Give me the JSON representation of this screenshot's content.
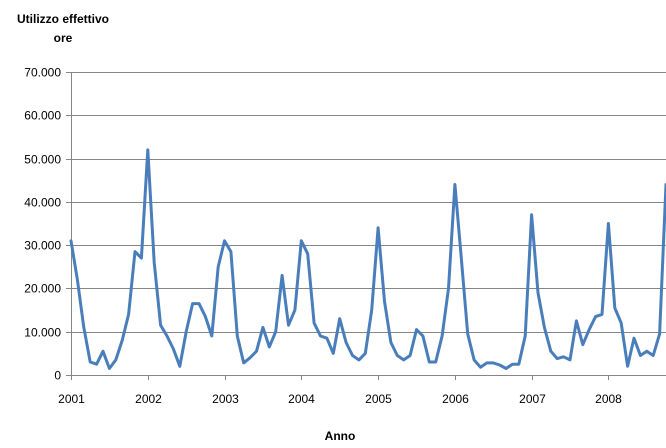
{
  "chart_data": {
    "type": "line",
    "ylabel": "Utilizzo effettivo ore",
    "xlabel": "Anno",
    "ylim": [
      0,
      70000
    ],
    "yticks": [
      0,
      10000,
      20000,
      30000,
      40000,
      50000,
      60000,
      70000
    ],
    "ytick_labels": [
      "0",
      "10.000",
      "20.000",
      "30.000",
      "40.000",
      "50.000",
      "60.000",
      "70.000"
    ],
    "xlim": [
      2001,
      2008.75
    ],
    "xticks": [
      2001,
      2002,
      2003,
      2004,
      2005,
      2006,
      2007,
      2008
    ],
    "xtick_labels": [
      "2001",
      "2002",
      "2003",
      "2004",
      "2005",
      "2006",
      "2007",
      "2008"
    ],
    "grid": "horizontal",
    "line_color": "#4a7ebb",
    "series": [
      {
        "x_start": 2001,
        "x_step_months": 1,
        "values": [
          31000,
          22000,
          11000,
          3000,
          2500,
          5500,
          1500,
          3500,
          8000,
          14000,
          28500,
          27000,
          52000,
          26000,
          11500,
          9000,
          6000,
          2000,
          10000,
          16500,
          16500,
          13500,
          9000,
          25000,
          31000,
          28500,
          9000,
          2800,
          4000,
          5500,
          11000,
          6500,
          10000,
          23000,
          11500,
          15000,
          31000,
          28000,
          12000,
          9000,
          8500,
          5000,
          13000,
          7500,
          4500,
          3500,
          5000,
          15000,
          34000,
          17000,
          7500,
          4500,
          3500,
          4500,
          10500,
          9000,
          3000,
          3000,
          9000,
          20000,
          44000,
          27000,
          9500,
          3500,
          1800,
          2800,
          2800,
          2300,
          1500,
          2500,
          2500,
          9000,
          37000,
          19000,
          11000,
          5500,
          3800,
          4200,
          3500,
          12500,
          7000,
          10500,
          13500,
          14000,
          35000,
          15500,
          12000,
          2000,
          8500,
          4500,
          5500,
          4500,
          9500,
          44000
        ]
      }
    ]
  }
}
